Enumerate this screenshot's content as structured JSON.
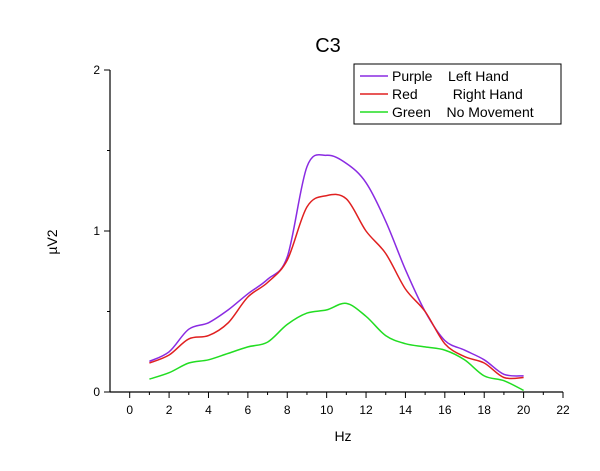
{
  "chart_data": {
    "type": "line",
    "title": "C3",
    "xlabel": "Hz",
    "ylabel": "µV2",
    "xlim": [
      -1,
      22
    ],
    "ylim": [
      0,
      2
    ],
    "x_ticks": [
      0,
      2,
      4,
      6,
      8,
      10,
      12,
      14,
      16,
      18,
      20,
      22
    ],
    "y_ticks": [
      0,
      1,
      2
    ],
    "grid": false,
    "legend_position": "top-right",
    "series": [
      {
        "name": "Purple    Left Hand",
        "color": "#8a2be2",
        "x": [
          1,
          2,
          3,
          4,
          5,
          6,
          7,
          8,
          9,
          10,
          11,
          12,
          13,
          14,
          15,
          16,
          17,
          18,
          19,
          20
        ],
        "y": [
          0.19,
          0.25,
          0.39,
          0.43,
          0.51,
          0.61,
          0.7,
          0.84,
          1.4,
          1.47,
          1.42,
          1.3,
          1.06,
          0.76,
          0.5,
          0.32,
          0.26,
          0.2,
          0.11,
          0.1
        ]
      },
      {
        "name": "Red         Right Hand",
        "color": "#e02020",
        "x": [
          1,
          2,
          3,
          4,
          5,
          6,
          7,
          8,
          9,
          10,
          11,
          12,
          13,
          14,
          15,
          16,
          17,
          18,
          19,
          20
        ],
        "y": [
          0.18,
          0.23,
          0.33,
          0.35,
          0.43,
          0.59,
          0.68,
          0.82,
          1.15,
          1.22,
          1.2,
          1.0,
          0.86,
          0.64,
          0.5,
          0.3,
          0.22,
          0.18,
          0.09,
          0.09
        ]
      },
      {
        "name": "Green    No Movement",
        "color": "#22dd22",
        "x": [
          1,
          2,
          3,
          4,
          5,
          6,
          7,
          8,
          9,
          10,
          11,
          12,
          13,
          14,
          15,
          16,
          17,
          18,
          19,
          20
        ],
        "y": [
          0.08,
          0.12,
          0.18,
          0.2,
          0.24,
          0.28,
          0.31,
          0.42,
          0.49,
          0.51,
          0.55,
          0.47,
          0.35,
          0.3,
          0.28,
          0.26,
          0.2,
          0.1,
          0.07,
          0.01
        ]
      }
    ]
  }
}
